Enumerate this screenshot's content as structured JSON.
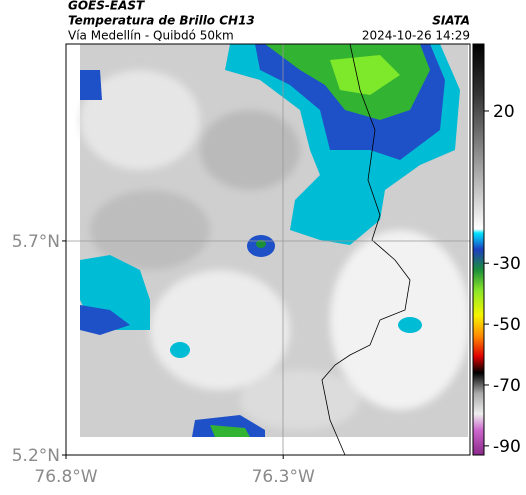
{
  "header": {
    "source": "GOES-EAST",
    "title": "Temperatura de Brillo CH13",
    "subtitle": "Vía Medellín - Quibdó 50km",
    "org": "SIATA",
    "datetime": "2024-10-26 14:29"
  },
  "map": {
    "xlim": [
      -76.8,
      -75.87
    ],
    "ylim": [
      5.2,
      6.16
    ],
    "lat_ticks": [
      {
        "value": 5.7,
        "label": "5.7°N"
      },
      {
        "value": 5.2,
        "label": "5.2°N"
      }
    ],
    "lon_ticks": [
      {
        "value": -76.8,
        "label": "76.8°W"
      },
      {
        "value": -76.3,
        "label": "76.3°W"
      }
    ],
    "colorbar": {
      "clim": [
        42,
        -93
      ],
      "ticks": [
        20,
        -30,
        -50,
        -70,
        -90
      ]
    }
  }
}
